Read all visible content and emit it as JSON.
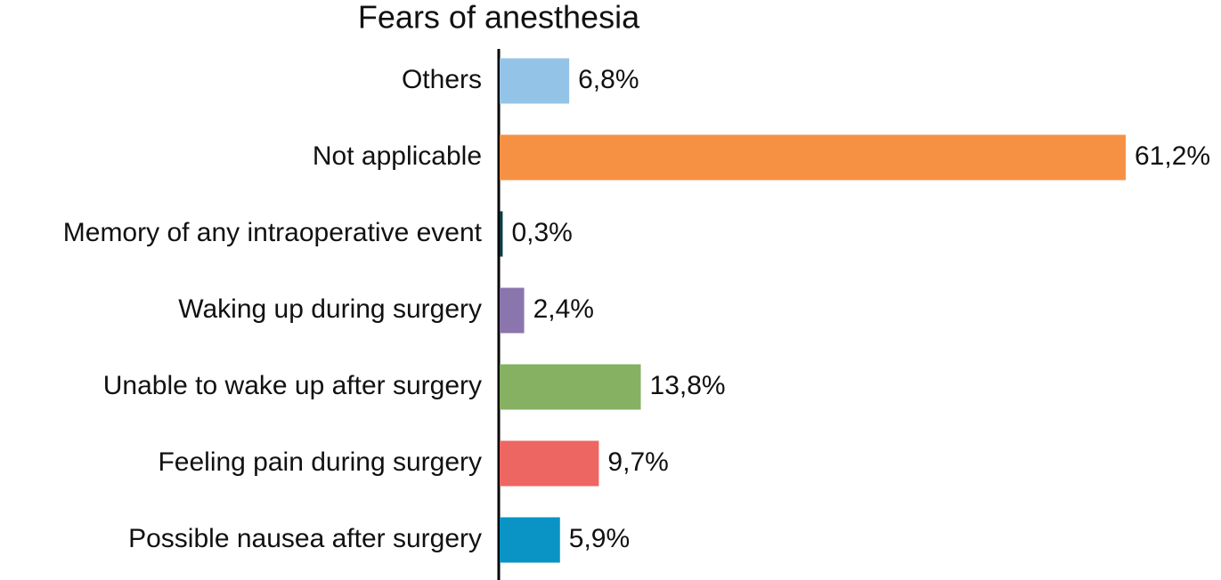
{
  "chart_data": {
    "type": "bar",
    "orientation": "horizontal",
    "title": "Fears of anesthesia",
    "categories": [
      "Others",
      "Not applicable",
      "Memory of any intraoperative event",
      "Waking up during surgery",
      "Unable to wake up after surgery",
      "Feeling pain during surgery",
      "Possible nausea after surgery"
    ],
    "values": [
      6.8,
      61.2,
      0.3,
      2.4,
      13.8,
      9.7,
      5.9
    ],
    "value_labels": [
      "6,8%",
      "61,2%",
      "0,3%",
      "2,4%",
      "13,8%",
      "9,7%",
      "5,9%"
    ],
    "colors": [
      "#93c4e8",
      "#f69144",
      "#0d3b44",
      "#8b75ad",
      "#86b062",
      "#ee6662",
      "#0a93c5"
    ]
  }
}
